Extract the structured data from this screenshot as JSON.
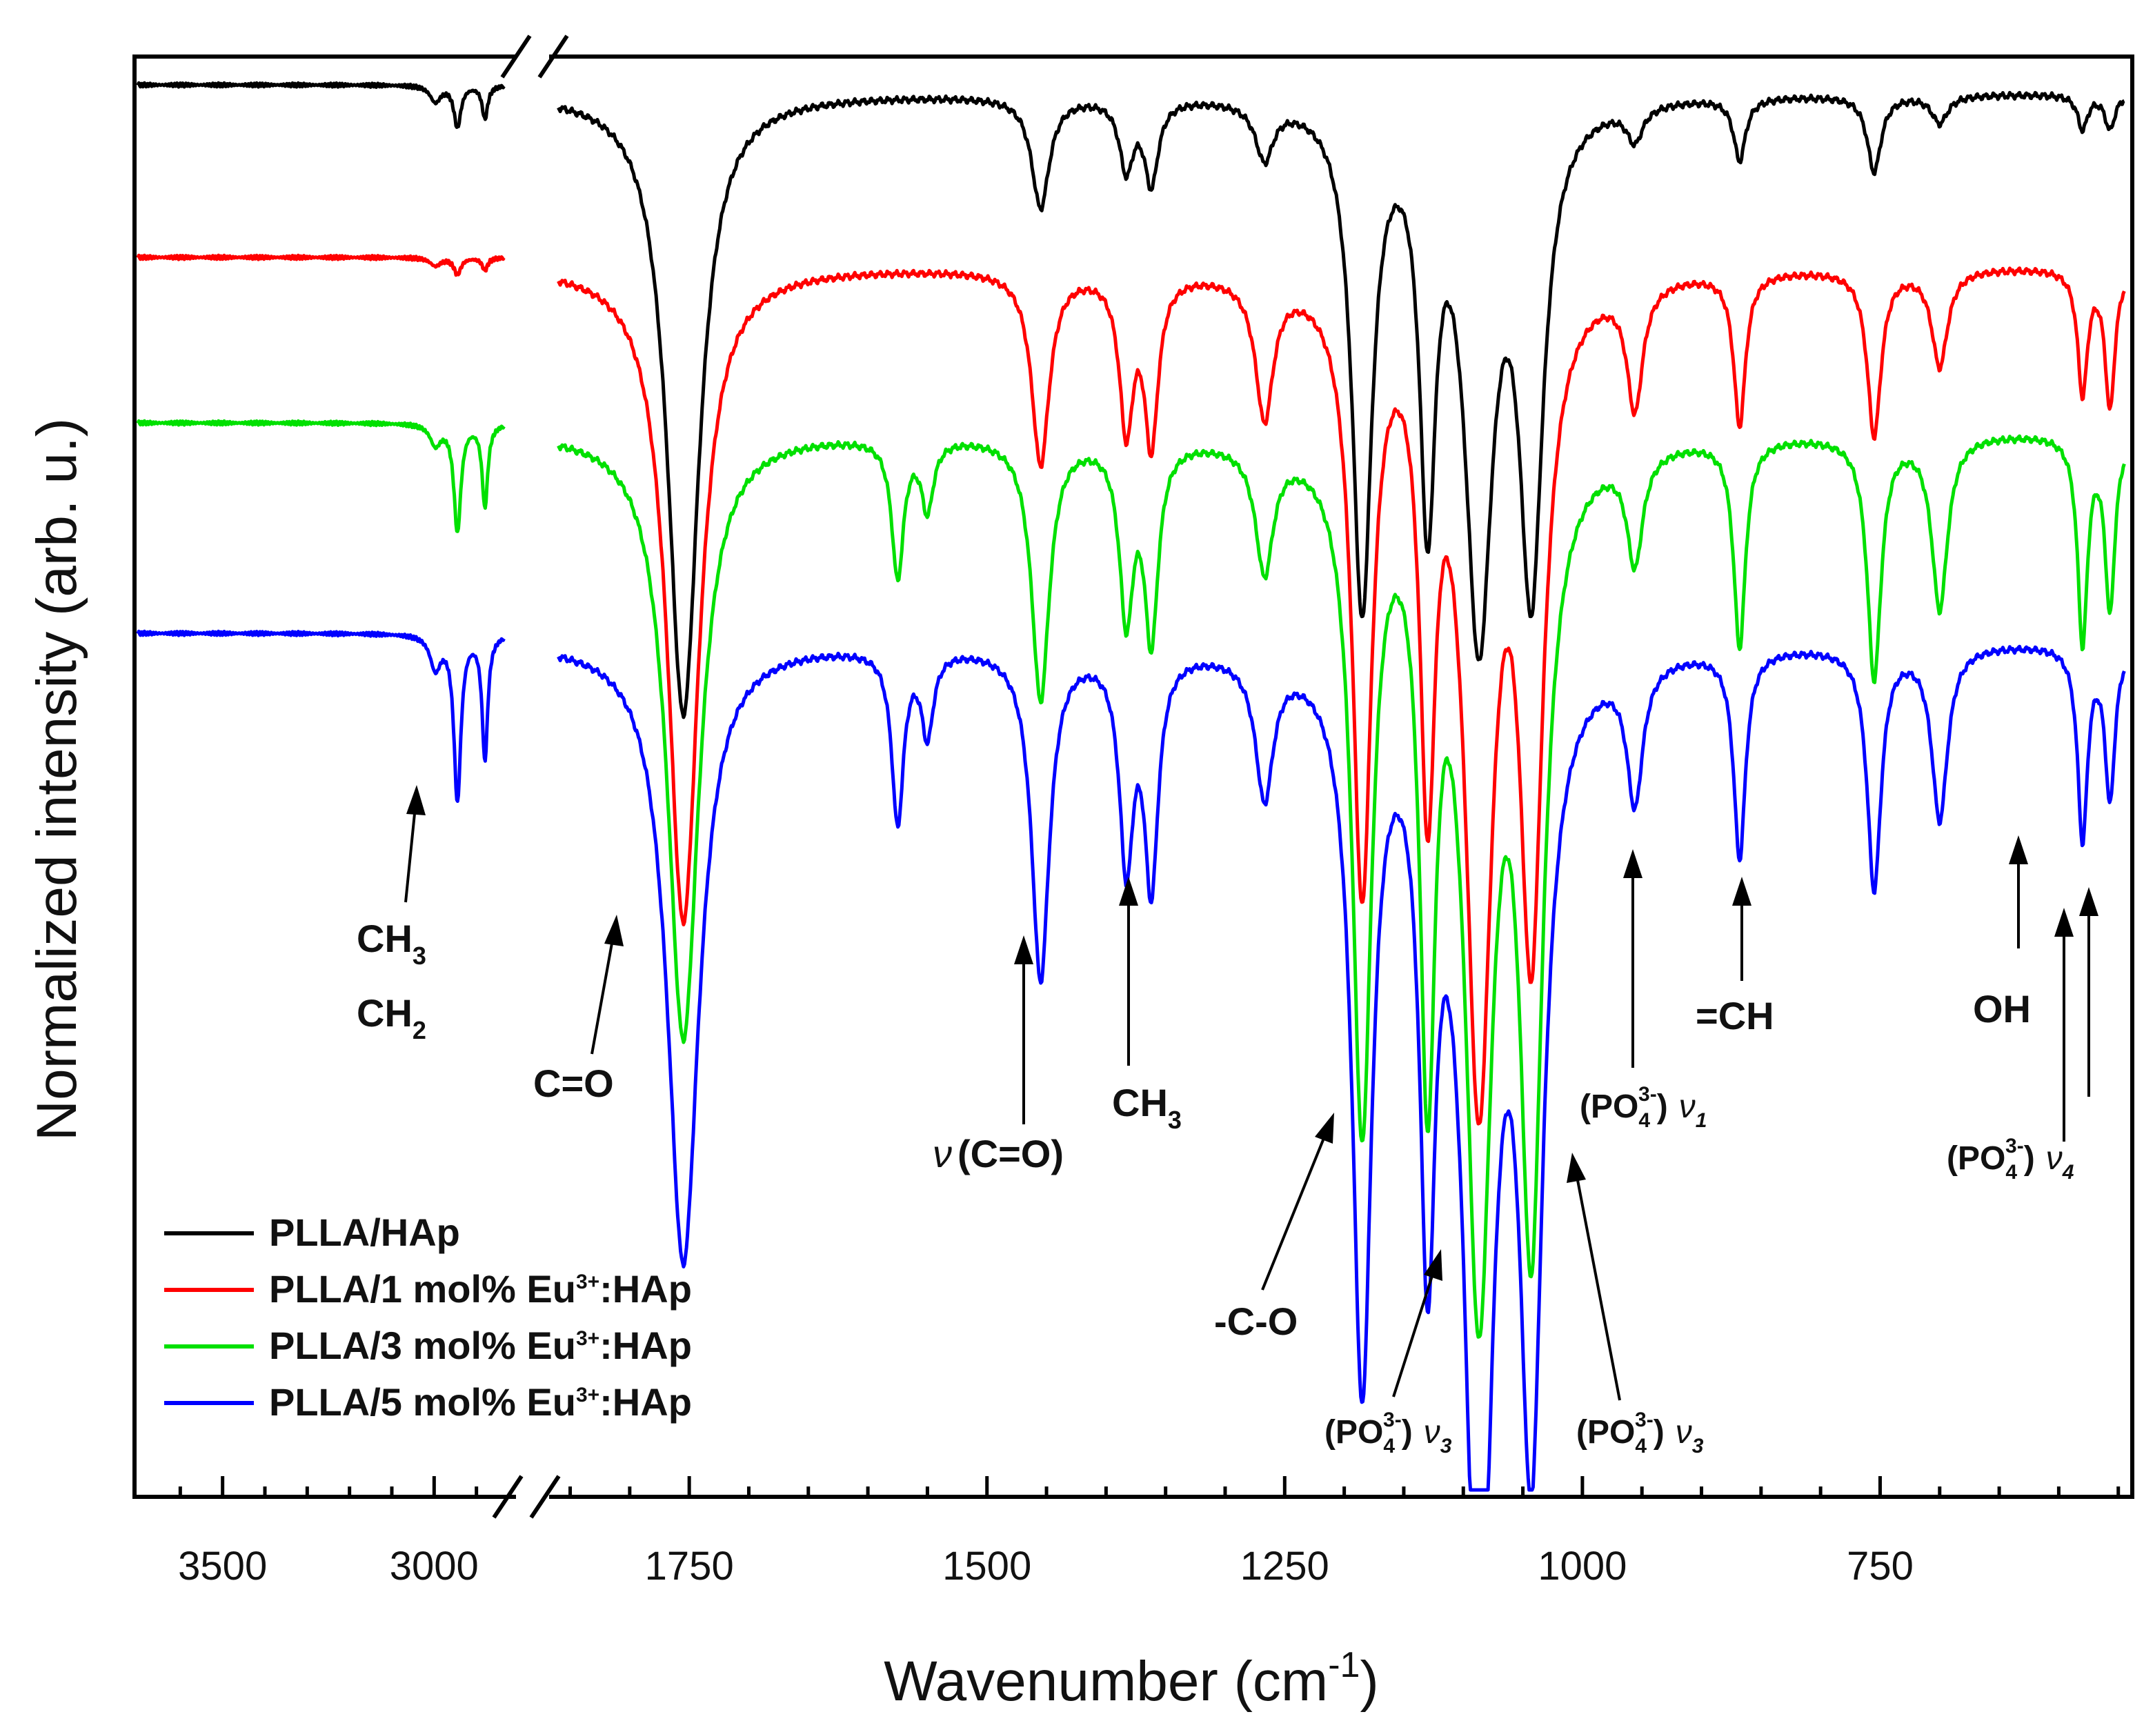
{
  "chart_data": {
    "type": "line",
    "title": "",
    "xlabel_main": "Wavenumber (cm",
    "xlabel_sup": "-1",
    "xlabel_close": ")",
    "ylabel": "Normalized intensity (arb. u.)",
    "x_axis": {
      "reversed": true,
      "broken": true,
      "left_segment": {
        "range": [
          3700,
          2800
        ],
        "ticks": [
          3500,
          3000
        ],
        "tick_labels": [
          "3500",
          "3000"
        ]
      },
      "right_segment": {
        "range": [
          1870,
          540
        ],
        "ticks": [
          1750,
          1500,
          1250,
          1000,
          750
        ],
        "tick_labels": [
          "1750",
          "1500",
          "1250",
          "1000",
          "750"
        ]
      }
    },
    "y_axis": {
      "range": [
        0,
        1
      ],
      "tick_labels": []
    },
    "grid": false,
    "legend_placement": "bottom-left",
    "series": [
      {
        "name": "PLLA/HAp",
        "legend_main": "PLLA/HAp",
        "legend_sup": "",
        "legend_tail": "",
        "color": "#000000",
        "offset": 3,
        "baseline": 0.03,
        "peaks": [
          [
            2997,
            0.04,
            15
          ],
          [
            2945,
            0.1,
            10
          ],
          [
            2880,
            0.08,
            8
          ],
          [
            1755,
            0.9,
            16
          ],
          [
            1455,
            0.16,
            9
          ],
          [
            1383,
            0.1,
            7
          ],
          [
            1362,
            0.12,
            7
          ],
          [
            1267,
            0.08,
            9
          ],
          [
            1185,
            0.73,
            10
          ],
          [
            1130,
            0.56,
            8
          ],
          [
            1087,
            0.75,
            14
          ],
          [
            1043,
            0.68,
            12
          ],
          [
            956,
            0.05,
            8
          ],
          [
            868,
            0.09,
            6
          ],
          [
            755,
            0.11,
            7
          ],
          [
            700,
            0.04,
            8
          ],
          [
            580,
            0.05,
            5
          ],
          [
            557,
            0.05,
            5
          ]
        ]
      },
      {
        "name": "PLLA/1 mol% Eu3+:HAp",
        "legend_main": "PLLA/1 mol% Eu",
        "legend_sup": "3+",
        "legend_tail": ":HAp",
        "color": "#ff0000",
        "offset": 2,
        "baseline": 0.03,
        "peaks": [
          [
            2997,
            0.02,
            15
          ],
          [
            2945,
            0.04,
            10
          ],
          [
            2880,
            0.03,
            8
          ],
          [
            1755,
            0.95,
            16
          ],
          [
            1455,
            0.28,
            9
          ],
          [
            1383,
            0.22,
            7
          ],
          [
            1362,
            0.24,
            7
          ],
          [
            1267,
            0.2,
            9
          ],
          [
            1185,
            0.88,
            10
          ],
          [
            1130,
            0.68,
            8
          ],
          [
            1087,
            1.15,
            14
          ],
          [
            1043,
            0.92,
            12
          ],
          [
            956,
            0.18,
            8
          ],
          [
            868,
            0.22,
            6
          ],
          [
            755,
            0.24,
            7
          ],
          [
            700,
            0.14,
            8
          ],
          [
            580,
            0.18,
            5
          ],
          [
            557,
            0.2,
            5
          ]
        ]
      },
      {
        "name": "PLLA/3 mol% Eu3+:HAp",
        "legend_main": "PLLA/3 mol% Eu",
        "legend_sup": "3+",
        "legend_tail": ":HAp",
        "color": "#00e000",
        "offset": 1,
        "baseline": 0.03,
        "peaks": [
          [
            2997,
            0.05,
            15
          ],
          [
            2945,
            0.26,
            10
          ],
          [
            2880,
            0.2,
            8
          ],
          [
            1755,
            0.88,
            16
          ],
          [
            1575,
            0.2,
            6
          ],
          [
            1550,
            0.1,
            6
          ],
          [
            1455,
            0.38,
            9
          ],
          [
            1383,
            0.25,
            7
          ],
          [
            1362,
            0.28,
            7
          ],
          [
            1267,
            0.18,
            9
          ],
          [
            1185,
            0.98,
            10
          ],
          [
            1130,
            0.85,
            8
          ],
          [
            1087,
            1.2,
            14
          ],
          [
            1043,
            1.1,
            12
          ],
          [
            956,
            0.16,
            8
          ],
          [
            868,
            0.3,
            6
          ],
          [
            755,
            0.35,
            7
          ],
          [
            700,
            0.25,
            8
          ],
          [
            580,
            0.3,
            5
          ],
          [
            557,
            0.25,
            5
          ]
        ]
      },
      {
        "name": "PLLA/5 mol% Eu3+:HAp",
        "legend_main": "PLLA/5 mol% Eu",
        "legend_sup": "3+",
        "legend_tail": ":HAp",
        "color": "#0000ff",
        "offset": 0,
        "baseline": 0.03,
        "peaks": [
          [
            2997,
            0.08,
            15
          ],
          [
            2945,
            0.4,
            10
          ],
          [
            2880,
            0.3,
            8
          ],
          [
            1755,
            0.9,
            16
          ],
          [
            1575,
            0.25,
            6
          ],
          [
            1550,
            0.12,
            6
          ],
          [
            1455,
            0.48,
            9
          ],
          [
            1383,
            0.3,
            7
          ],
          [
            1362,
            0.33,
            7
          ],
          [
            1267,
            0.2,
            9
          ],
          [
            1185,
            1.05,
            10
          ],
          [
            1130,
            0.78,
            8
          ],
          [
            1087,
            1.45,
            14
          ],
          [
            1043,
            1.1,
            12
          ],
          [
            956,
            0.2,
            8
          ],
          [
            868,
            0.3,
            6
          ],
          [
            755,
            0.35,
            7
          ],
          [
            700,
            0.25,
            8
          ],
          [
            580,
            0.28,
            5
          ],
          [
            557,
            0.22,
            5
          ]
        ]
      }
    ],
    "annotations": [
      {
        "id": "ch3-ch2",
        "lines": [
          {
            "t": "CH",
            "s": "3"
          },
          {
            "t": "CH",
            "s": "2"
          }
        ],
        "wavenumber": 2980
      },
      {
        "id": "c-o-double",
        "text": "C=O",
        "wavenumber": 1760
      },
      {
        "id": "nu-c-o",
        "nu": "ν",
        "text": "(C=O)",
        "wavenumber": 1455
      },
      {
        "id": "ch3-bend",
        "text": "CH",
        "sub": "3",
        "wavenumber": 1370
      },
      {
        "id": "c-o-single",
        "text": "-C-O",
        "wavenumber": 1185
      },
      {
        "id": "po4-nu3-a",
        "po": "(PO",
        "po_sub": "4",
        "po_sup": "3-",
        "po_close": ")",
        "nu": "ν",
        "nu_sub": "3",
        "wavenumber": 1090
      },
      {
        "id": "po4-nu3-b",
        "po": "(PO",
        "po_sub": "4",
        "po_sup": "3-",
        "po_close": ")",
        "nu": "ν",
        "nu_sub": "3",
        "wavenumber": 1035
      },
      {
        "id": "po4-nu1",
        "po": "(PO",
        "po_sub": "4",
        "po_sup": "3-",
        "po_close": ")",
        "nu": "ν",
        "nu_sub": "1",
        "wavenumber": 960
      },
      {
        "id": "ch-eq",
        "text": "=CH",
        "wavenumber": 868
      },
      {
        "id": "oh",
        "text": "OH",
        "wavenumber": 632
      },
      {
        "id": "po4-nu4",
        "po": "(PO",
        "po_sub": "4",
        "po_sup": "3-",
        "po_close": ")",
        "nu": "ν",
        "nu_sub": "4",
        "wavenumber": 570
      }
    ]
  }
}
